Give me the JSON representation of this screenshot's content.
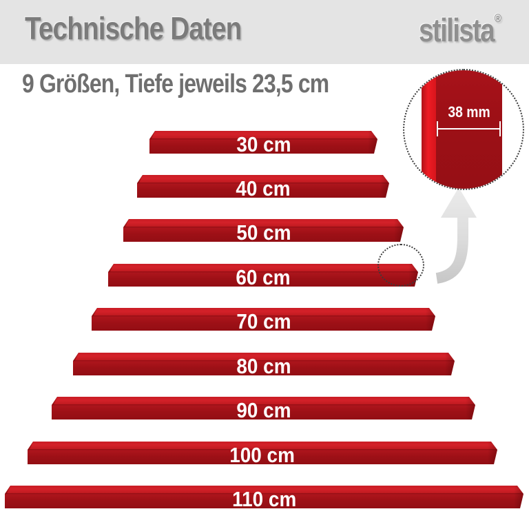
{
  "header": {
    "title": "Technische Daten",
    "brand": {
      "name": "stilista",
      "registered_mark": "®"
    }
  },
  "subtitle": "9 Größen, Tiefe jeweils 23,5 cm",
  "shelves": [
    {
      "label": "30 cm"
    },
    {
      "label": "40 cm"
    },
    {
      "label": "50 cm"
    },
    {
      "label": "60 cm"
    },
    {
      "label": "70 cm"
    },
    {
      "label": "80 cm"
    },
    {
      "label": "90 cm"
    },
    {
      "label": "100 cm"
    },
    {
      "label": "110 cm"
    }
  ],
  "inset": {
    "thickness_label": "38 mm"
  },
  "colors": {
    "header_band": "#e4e4e4",
    "title_gray": "#7b7b7b",
    "logo_gray": "#8f8f8f",
    "shelf_top": "#cf1e25",
    "shelf_front": "#9d1016",
    "edge_highlight": "#ee1c24",
    "label_white": "#ffffff"
  }
}
